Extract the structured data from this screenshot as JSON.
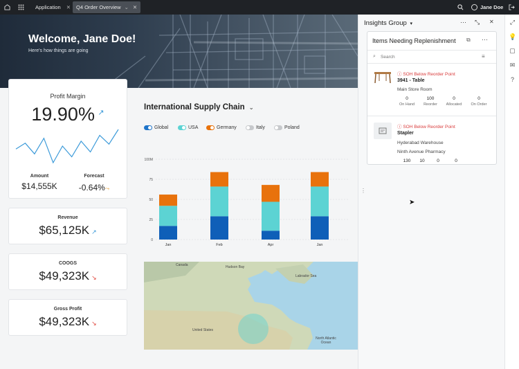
{
  "topbar": {
    "app_label": "Application",
    "tab_label": "Q4  Order Overview",
    "user_name": "Jane Doe"
  },
  "hero": {
    "title": "Welcome, Jane Doe!",
    "subtitle": "Here's how things are going"
  },
  "profit_margin": {
    "label": "Profit Margin",
    "value": "19.90%",
    "sparkline": [
      52,
      58,
      47,
      63,
      38,
      55,
      44,
      60,
      49,
      66,
      57,
      72
    ],
    "amount_label": "Amount",
    "amount_value": "$14,555K",
    "forecast_label": "Forecast",
    "forecast_value": "-0.64%"
  },
  "kpis": [
    {
      "label": "Revenue",
      "value": "$65,125K",
      "trend": "up"
    },
    {
      "label": "COOGS",
      "value": "$49,323K",
      "trend": "down"
    },
    {
      "label": "Gross Profit",
      "value": "$49,323K",
      "trend": "down"
    }
  ],
  "supply_chain": {
    "title": "International Supply Chain",
    "toggles": [
      {
        "label": "Global",
        "on": true,
        "color": "#1e74c9"
      },
      {
        "label": "USA",
        "on": true,
        "color": "#5cd3d3"
      },
      {
        "label": "Germany",
        "on": true,
        "color": "#e8720c"
      },
      {
        "label": "Italy",
        "on": false,
        "color": "#c7c9cc"
      },
      {
        "label": "Poland",
        "on": false,
        "color": "#c7c9cc"
      }
    ]
  },
  "chart_data": {
    "type": "bar",
    "stacked": true,
    "categories": [
      "Jan",
      "Feb",
      "Apr",
      "Jan"
    ],
    "series": [
      {
        "name": "Global",
        "color": "#0f5fb8",
        "values": [
          17,
          29,
          11,
          29
        ]
      },
      {
        "name": "USA",
        "color": "#5cd3d3",
        "values": [
          25,
          37,
          36,
          37
        ]
      },
      {
        "name": "Germany",
        "color": "#e8720c",
        "values": [
          14,
          18,
          21,
          18
        ]
      }
    ],
    "y_ticks": [
      "100M",
      "75",
      "50",
      "25",
      "0"
    ],
    "ylim": [
      0,
      100
    ],
    "grid": true
  },
  "map": {
    "labels": [
      "Canada",
      "Hudson Bay",
      "Labrador Sea",
      "United States",
      "North Atlantic Ocean"
    ]
  },
  "insights": {
    "group_title": "Insights Group",
    "panel_title": "Items Needing Replenishment",
    "search_placeholder": "Search",
    "items": [
      {
        "alert": "SOH Below Reorder Point",
        "name": "3941 - Table",
        "location": "Main Store Room",
        "stats": [
          {
            "value": "0",
            "label": "On Hand"
          },
          {
            "value": "100",
            "label": "Reorder"
          },
          {
            "value": "0",
            "label": "Allocated"
          },
          {
            "value": "0",
            "label": "On Order"
          }
        ]
      },
      {
        "alert": "SOH Below Reorder Point",
        "name": "Stapler",
        "location": "Hyderabad Warehouse",
        "location2": "Ninth Avenue Pharmacy",
        "stats": [
          {
            "value": "130"
          },
          {
            "value": "10"
          },
          {
            "value": "0"
          },
          {
            "value": "0"
          }
        ]
      }
    ]
  },
  "colors": {
    "topbar": "#1f2226",
    "accent_blue": "#0f5fb8",
    "teal": "#5cd3d3",
    "orange": "#e8720c",
    "alert_red": "#d93b3b"
  }
}
